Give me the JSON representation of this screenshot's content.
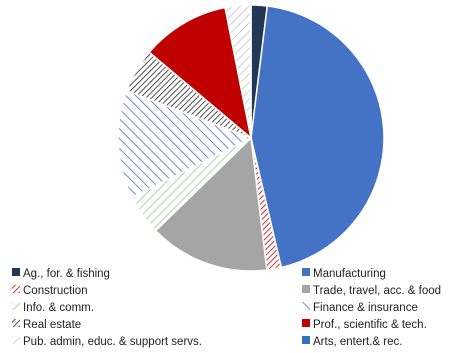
{
  "chart_data": {
    "type": "pie",
    "title": "",
    "slices": [
      {
        "label": "Ag., for. & fishing",
        "value": 2.0,
        "color": "#243656",
        "pattern": "solid"
      },
      {
        "label": "Manufacturing",
        "value": 45.5,
        "color": "#4472c4",
        "pattern": "solid"
      },
      {
        "label": "Construction",
        "value": 1.8,
        "color": "#c00000",
        "pattern": "diag-dense"
      },
      {
        "label": "Trade, travel, acc. & food",
        "value": 15.0,
        "color": "#a5a5a5",
        "pattern": "solid"
      },
      {
        "label": "Info. & comm.",
        "value": 5.0,
        "color": "#92c47d",
        "pattern": "diag-wide"
      },
      {
        "label": "Finance & insurance",
        "value": 13.5,
        "color": "#4472c4",
        "pattern": "backdiag-wide"
      },
      {
        "label": "Real estate",
        "value": 5.5,
        "color": "#262626",
        "pattern": "diag-dense"
      },
      {
        "label": "Prof., scientific & tech.",
        "value": 11.0,
        "color": "#c00000",
        "pattern": "solid"
      },
      {
        "label": "Pub. admin, educ. & support servs.",
        "value": 3.2,
        "color": "#bfbfbf",
        "pattern": "diag-wide"
      },
      {
        "label": "Arts, entert.& rec.",
        "value": 0.0,
        "color": "#2e75b6",
        "pattern": "solid"
      }
    ],
    "legend_position": "bottom"
  }
}
